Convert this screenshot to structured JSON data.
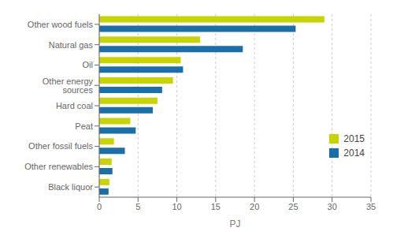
{
  "chart_data": {
    "type": "bar",
    "orientation": "horizontal",
    "categories": [
      "Black liquor",
      "Other renewables",
      "Other fossil fuels",
      "Peat",
      "Hard coal",
      "Other energy sources",
      "Oil",
      "Natural gas",
      "Other wood fuels"
    ],
    "series": [
      {
        "name": "2015",
        "color": "#c8d400",
        "values": [
          1.3,
          1.6,
          1.9,
          4.0,
          7.5,
          9.5,
          10.5,
          13.0,
          29.0
        ]
      },
      {
        "name": "2014",
        "color": "#1a6fa8",
        "values": [
          1.2,
          1.7,
          3.3,
          4.7,
          6.9,
          8.1,
          10.8,
          18.5,
          25.3
        ]
      }
    ],
    "xlabel": "PJ",
    "xlim": [
      0,
      35
    ],
    "xticks": [
      0,
      5,
      10,
      15,
      20,
      25,
      30,
      35
    ],
    "grid": true,
    "legend": "lower right"
  }
}
